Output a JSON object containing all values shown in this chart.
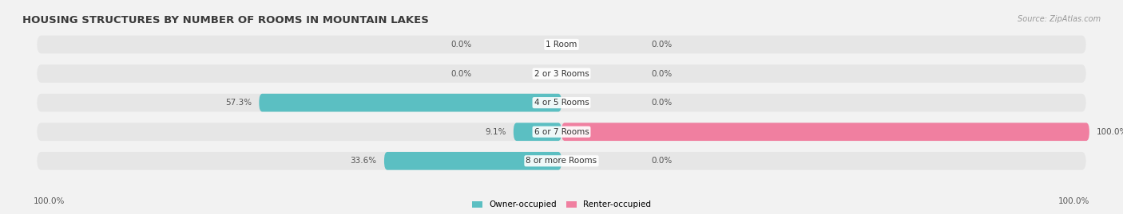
{
  "title": "HOUSING STRUCTURES BY NUMBER OF ROOMS IN MOUNTAIN LAKES",
  "source": "Source: ZipAtlas.com",
  "categories": [
    "1 Room",
    "2 or 3 Rooms",
    "4 or 5 Rooms",
    "6 or 7 Rooms",
    "8 or more Rooms"
  ],
  "owner_values": [
    0.0,
    0.0,
    57.3,
    9.1,
    33.6
  ],
  "renter_values": [
    0.0,
    0.0,
    0.0,
    100.0,
    0.0
  ],
  "owner_color": "#5bbfc2",
  "renter_color": "#f07fa0",
  "bg_color": "#f2f2f2",
  "bar_bg_color": "#e6e6e6",
  "max_value": 100.0,
  "title_fontsize": 9.5,
  "label_fontsize": 7.5,
  "category_fontsize": 7.5,
  "bottom_left_label": "100.0%",
  "bottom_right_label": "100.0%"
}
